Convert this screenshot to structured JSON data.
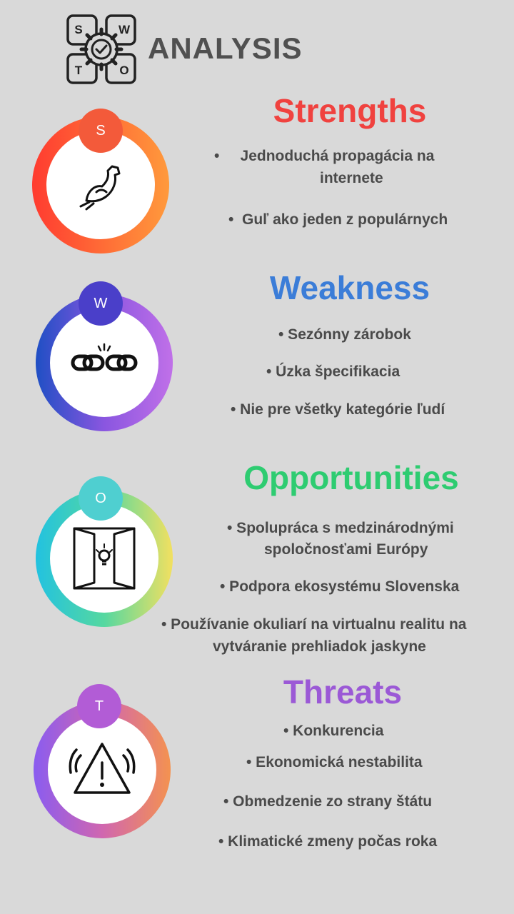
{
  "header": {
    "title": "ANALYSIS",
    "logo_letters": [
      "S",
      "W",
      "T",
      "O"
    ]
  },
  "colors": {
    "background": "#d9d9d9",
    "strengths": "#f0423f",
    "weakness": "#3b7dd8",
    "opportunities": "#2ecc71",
    "threats": "#9b59d6",
    "bullet_text": "#4a4a4a"
  },
  "sections": {
    "strengths": {
      "letter": "S",
      "title": "Strengths",
      "icon": "flexed-arm-icon",
      "items": [
        "•     Jednoduchá propagácia na",
        "internete",
        "•  Guľ ako jeden z populárnych"
      ]
    },
    "weakness": {
      "letter": "W",
      "title": "Weakness",
      "icon": "broken-chain-icon",
      "items": [
        "• Sezónny zárobok",
        "• Úzka špecifikacia",
        "• Nie pre všetky kategórie ľudí"
      ]
    },
    "opportunities": {
      "letter": "O",
      "title": "Opportunities",
      "icon": "open-door-lightbulb-icon",
      "items": [
        "• Spolupráca s medzinárodnými",
        "spoločnosťami Európy",
        "• Podpora ekosystému Slovenska",
        "• Používanie okuliarí na virtualnu realitu na",
        "vytváranie prehliadok jaskyne"
      ]
    },
    "threats": {
      "letter": "T",
      "title": "Threats",
      "icon": "warning-alarm-icon",
      "items": [
        "• Konkurencia",
        "• Ekonomická nestabilita",
        "• Obmedzenie zo strany štátu",
        "• Klimatické zmeny počas roka"
      ]
    }
  }
}
